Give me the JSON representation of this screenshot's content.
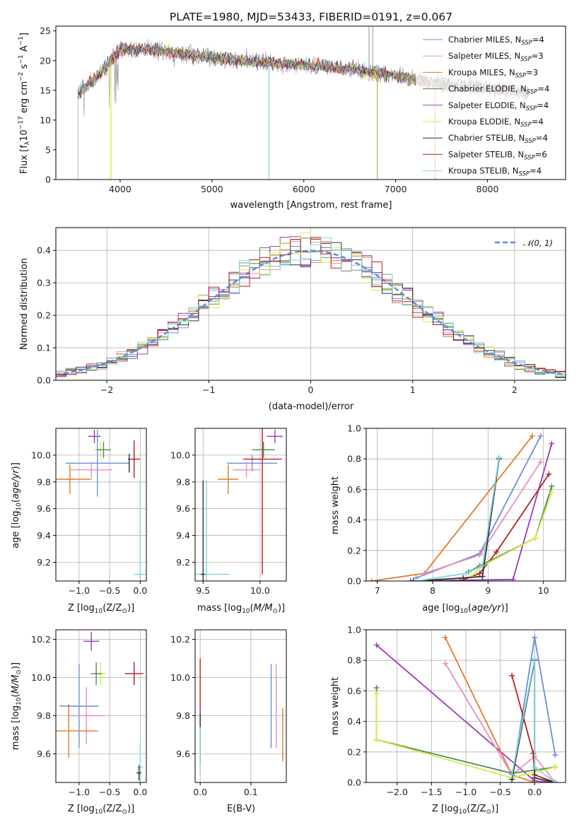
{
  "chart_data": [
    {
      "id": "spectrum",
      "type": "line",
      "title": "PLATE=1980, MJD=53433, FIBERID=0191, z=0.067",
      "xlabel": "wavelength [Angstrom, rest frame]",
      "ylabel": "Flux [f_λ10^-17 erg cm^-2 s^-1 A^-1]",
      "xlim": [
        3300,
        8850
      ],
      "ylim": [
        0,
        25.8
      ],
      "xticks": [
        4000,
        5000,
        6000,
        7000,
        8000
      ],
      "yticks": [
        0,
        5,
        10,
        15,
        20,
        25
      ],
      "grid": false,
      "legend_position": "top-right",
      "continuum": {
        "x": [
          3540,
          3700,
          3850,
          4000,
          4200,
          4500,
          4800,
          5000,
          5500,
          6000,
          6500,
          7000,
          7500,
          8000,
          8500
        ],
        "y": [
          14.5,
          16.5,
          19.0,
          21.8,
          22.0,
          21.5,
          21.0,
          20.5,
          19.8,
          19.3,
          18.6,
          17.4,
          16.0,
          15.4,
          14.5
        ]
      },
      "observed_features": {
        "sky_line_x": [
          6710,
          6750
        ],
        "sky_line_y": 25.8,
        "absorption_x": [
          3900,
          5620,
          6800,
          7430
        ],
        "absorption_y": [
          0,
          0,
          0,
          0
        ]
      },
      "series": [
        {
          "name": "Chabrier MILES, N_SSP=4",
          "color": "#6b8fd6"
        },
        {
          "name": "Salpeter MILES, N_SSP=3",
          "color": "#e88fbf"
        },
        {
          "name": "Kroupa MILES, N_SSP=3",
          "color": "#e07b2a"
        },
        {
          "name": "Chabrier ELODIE, N_SSP=4",
          "color": "#4f8a55"
        },
        {
          "name": "Salpeter ELODIE, N_SSP=4",
          "color": "#9b3bb5"
        },
        {
          "name": "Kroupa ELODIE, N_SSP=4",
          "color": "#d7ea46"
        },
        {
          "name": "Chabrier STELIB, N_SSP=4",
          "color": "#333333"
        },
        {
          "name": "Salpeter STELIB, N_SSP=6",
          "color": "#b51f1f"
        },
        {
          "name": "Kroupa STELIB, N_SSP=4",
          "color": "#7fd6d8"
        }
      ]
    },
    {
      "id": "residuals",
      "type": "line",
      "xlabel": "(data-model)/error",
      "ylabel": "Normed distribution",
      "xlim": [
        -2.5,
        2.5
      ],
      "ylim": [
        0,
        0.47
      ],
      "xticks": [
        -2,
        -1,
        0,
        1,
        2
      ],
      "yticks": [
        0.0,
        0.1,
        0.2,
        0.3,
        0.4
      ],
      "grid": true,
      "legend_position": "top-right",
      "reference": {
        "name": "N(0,1)",
        "color": "#5b8bd6",
        "mean": 0,
        "sigma": 1
      },
      "bin_width": 0.1
    },
    {
      "id": "age-vs-z",
      "type": "scatter",
      "xlabel": "Z [log10(Z/Z⊙)]",
      "ylabel": "age [log10(age/yr)]",
      "xlim": [
        -1.38,
        0.1
      ],
      "ylim": [
        9.06,
        10.2
      ],
      "xticks": [
        -1.0,
        -0.5,
        0.0
      ],
      "xticklabels": [
        "−1.0",
        "−0.5",
        "0.0"
      ],
      "yticks": [
        9.2,
        9.4,
        9.6,
        9.8,
        10.0
      ],
      "grid": true,
      "points": [
        {
          "x": -0.75,
          "y": 10.14,
          "xerr": 0.1,
          "yerr": 0.05,
          "color": "#9b3bb5"
        },
        {
          "x": -0.65,
          "y": 10.04,
          "xerr": 0.11,
          "yerr": 0.06,
          "color": "#d7ea46"
        },
        {
          "x": -0.6,
          "y": 10.04,
          "xerr": 0.12,
          "yerr": 0.06,
          "color": "#4f8a55"
        },
        {
          "x": -0.7,
          "y": 9.94,
          "xerr": 0.52,
          "yerr": 0.25,
          "color": "#6b8fd6"
        },
        {
          "x": -0.8,
          "y": 9.89,
          "xerr": 0.34,
          "yerr": 0.06,
          "color": "#e88fbf"
        },
        {
          "x": -1.15,
          "y": 9.82,
          "xerr": 0.35,
          "yerr": 0.11,
          "color": "#e07b2a"
        },
        {
          "x": -0.1,
          "y": 9.97,
          "xerr": 0.1,
          "yerr": 0.14,
          "color": "#b51f1f"
        },
        {
          "x": 0.0,
          "y": 9.11,
          "xerr": 0.1,
          "yerr": 0.7,
          "color": "#7fd6d8"
        },
        {
          "x": -0.18,
          "y": 9.94,
          "xerr": 0.0,
          "yerr": 0.07,
          "color": "#333333"
        }
      ]
    },
    {
      "id": "age-vs-mass",
      "type": "scatter",
      "xlabel": "mass [log10(M/M⊙)]",
      "xlim": [
        9.43,
        10.23
      ],
      "ylim": [
        9.06,
        10.2
      ],
      "xticks": [
        9.5,
        10.0
      ],
      "xticklabels": [
        "9.5",
        "10.0"
      ],
      "yticks": [
        9.2,
        9.4,
        9.6,
        9.8,
        10.0
      ],
      "grid": true,
      "points": [
        {
          "x": 10.13,
          "y": 10.14,
          "xerr": 0.07,
          "yerr": 0.05,
          "color": "#9b3bb5"
        },
        {
          "x": 10.03,
          "y": 10.04,
          "xerr": 0.07,
          "yerr": 0.06,
          "color": "#d7ea46"
        },
        {
          "x": 10.03,
          "y": 10.04,
          "xerr": 0.1,
          "yerr": 0.06,
          "color": "#4f8a55"
        },
        {
          "x": 9.93,
          "y": 9.94,
          "xerr": 0.22,
          "yerr": 0.06,
          "color": "#6b8fd6"
        },
        {
          "x": 9.88,
          "y": 9.89,
          "xerr": 0.12,
          "yerr": 0.06,
          "color": "#e88fbf"
        },
        {
          "x": 9.72,
          "y": 9.82,
          "xerr": 0.09,
          "yerr": 0.11,
          "color": "#e07b2a"
        },
        {
          "x": 10.02,
          "y": 9.97,
          "xerr": 0.17,
          "yerr": 0.86,
          "color": "#b51f1f"
        },
        {
          "x": 9.53,
          "y": 9.11,
          "xerr": 0.2,
          "yerr": 0.7,
          "color": "#7fd6d8"
        },
        {
          "x": 9.5,
          "y": 9.11,
          "xerr": 0.02,
          "yerr": 0.7,
          "color": "#333333"
        }
      ]
    },
    {
      "id": "weight-vs-age",
      "type": "line",
      "xlabel": "age [log10(age/yr)]",
      "ylabel": "mass weight",
      "xlim": [
        6.8,
        10.4
      ],
      "ylim": [
        0,
        1
      ],
      "xticks": [
        7,
        8,
        9,
        10
      ],
      "yticks": [
        0.0,
        0.2,
        0.4,
        0.6,
        0.8,
        1.0
      ],
      "grid": true,
      "series": [
        {
          "color": "#e07b2a",
          "x": [
            6.9,
            7.85,
            9.8
          ],
          "y": [
            0.0,
            0.05,
            0.95
          ]
        },
        {
          "color": "#6b8fd6",
          "x": [
            7.7,
            8.85,
            9.95
          ],
          "y": [
            0.02,
            0.18,
            0.95
          ]
        },
        {
          "color": "#e88fbf",
          "x": [
            7.85,
            8.85,
            9.95
          ],
          "y": [
            0.05,
            0.17,
            0.78
          ]
        },
        {
          "color": "#9b3bb5",
          "x": [
            7.6,
            9.45,
            10.15
          ],
          "y": [
            0.0,
            0.01,
            0.9
          ]
        },
        {
          "color": "#b51f1f",
          "x": [
            8.5,
            8.85,
            9.15,
            10.1
          ],
          "y": [
            0.0,
            0.05,
            0.19,
            0.7
          ]
        },
        {
          "color": "#4f8a55",
          "x": [
            8.65,
            8.85,
            9.85,
            10.15
          ],
          "y": [
            0.06,
            0.1,
            0.28,
            0.62
          ]
        },
        {
          "color": "#d7ea46",
          "x": [
            8.7,
            8.9,
            9.85,
            10.15
          ],
          "y": [
            0.03,
            0.1,
            0.28,
            0.58
          ]
        },
        {
          "color": "#333333",
          "x": [
            7.65,
            8.55,
            8.9,
            9.2
          ],
          "y": [
            0.0,
            0.02,
            0.03,
            0.8
          ]
        },
        {
          "color": "#7fd6d8",
          "x": [
            7.7,
            8.6,
            8.9,
            9.2
          ],
          "y": [
            0.0,
            0.05,
            0.1,
            0.81
          ]
        }
      ]
    },
    {
      "id": "mass-vs-z",
      "type": "scatter",
      "xlabel": "Z [log10(Z/Z⊙)]",
      "ylabel": "mass [log10(M/M⊙)]",
      "xlim": [
        -1.38,
        0.1
      ],
      "ylim": [
        9.45,
        10.25
      ],
      "xticks": [
        -1.0,
        -0.5,
        0.0
      ],
      "xticklabels": [
        "−1.0",
        "−0.5",
        "0.0"
      ],
      "yticks": [
        9.6,
        9.8,
        10.0,
        10.2
      ],
      "grid": true,
      "points": [
        {
          "x": -0.8,
          "y": 10.19,
          "xerr": 0.13,
          "yerr": 0.05,
          "color": "#9b3bb5"
        },
        {
          "x": -0.65,
          "y": 10.02,
          "xerr": 0.09,
          "yerr": 0.06,
          "color": "#d7ea46"
        },
        {
          "x": -0.72,
          "y": 10.02,
          "xerr": 0.09,
          "yerr": 0.06,
          "color": "#4f8a55"
        },
        {
          "x": -1.0,
          "y": 9.85,
          "xerr": 0.32,
          "yerr": 0.22,
          "color": "#6b8fd6"
        },
        {
          "x": -0.88,
          "y": 9.8,
          "xerr": 0.3,
          "yerr": 0.15,
          "color": "#e88fbf"
        },
        {
          "x": -1.17,
          "y": 9.72,
          "xerr": 0.48,
          "yerr": 0.14,
          "color": "#e07b2a"
        },
        {
          "x": -0.1,
          "y": 10.02,
          "xerr": 0.15,
          "yerr": 0.06,
          "color": "#b51f1f"
        },
        {
          "x": 0.0,
          "y": 9.53,
          "xerr": 0.05,
          "yerr": 0.13,
          "color": "#7fd6d8"
        },
        {
          "x": -0.02,
          "y": 9.5,
          "xerr": 0.04,
          "yerr": 0.04,
          "color": "#333333"
        }
      ]
    },
    {
      "id": "mass-vs-ebv",
      "type": "scatter",
      "xlabel": "E(B-V)",
      "xlim": [
        -0.01,
        0.17
      ],
      "ylim": [
        9.45,
        10.25
      ],
      "xticks": [
        0.0,
        0.1
      ],
      "xticklabels": [
        "0.0",
        "0.1"
      ],
      "yticks": [
        9.6,
        9.8,
        10.0,
        10.2
      ],
      "grid": true,
      "points": [
        {
          "x": 0.001,
          "y": 10.2,
          "yerr": 0.0,
          "color": "#9b3bb5"
        },
        {
          "x": 0.0,
          "y": 9.9,
          "yerr": 0.2,
          "color": "#b51f1f"
        },
        {
          "x": 0.0,
          "y": 9.68,
          "yerr": 0.13,
          "color": "#333333"
        },
        {
          "x": 0.0,
          "y": 9.62,
          "yerr": 0.12,
          "color": "#7fd6d8"
        },
        {
          "x": 0.14,
          "y": 9.85,
          "yerr": 0.22,
          "color": "#6b8fd6"
        },
        {
          "x": 0.15,
          "y": 9.85,
          "yerr": 0.22,
          "color": "#e88fbf"
        },
        {
          "x": 0.163,
          "y": 9.7,
          "yerr": 0.14,
          "color": "#e07b2a"
        }
      ]
    },
    {
      "id": "weight-vs-z",
      "type": "line",
      "xlabel": "Z [log10(Z/Z⊙)]",
      "ylabel": "mass weight",
      "xlim": [
        -2.45,
        0.45
      ],
      "ylim": [
        0,
        1
      ],
      "xticks": [
        -2.0,
        -1.5,
        -1.0,
        -0.5,
        0.0
      ],
      "xticklabels": [
        "−2.0",
        "−1.5",
        "−1.0",
        "−0.5",
        "0.0"
      ],
      "yticks": [
        0.0,
        0.2,
        0.4,
        0.6,
        0.8,
        1.0
      ],
      "grid": true,
      "series": [
        {
          "color": "#9b3bb5",
          "x": [
            -2.3,
            0.0,
            0.3
          ],
          "y": [
            0.9,
            0.01,
            0.0
          ]
        },
        {
          "color": "#e07b2a",
          "x": [
            -1.3,
            -0.33,
            0.0
          ],
          "y": [
            0.95,
            0.05,
            0.0
          ]
        },
        {
          "color": "#e88fbf",
          "x": [
            -1.3,
            -0.33,
            0.0,
            0.3
          ],
          "y": [
            0.78,
            0.05,
            0.17,
            0.0
          ]
        },
        {
          "color": "#6b8fd6",
          "x": [
            -0.33,
            0.0,
            0.3
          ],
          "y": [
            0.02,
            0.95,
            0.18
          ]
        },
        {
          "color": "#b51f1f",
          "x": [
            -0.33,
            -0.02,
            0.0,
            0.3
          ],
          "y": [
            0.7,
            0.19,
            0.05,
            0.0
          ]
        },
        {
          "color": "#4f8a55",
          "x": [
            -2.3,
            -2.3,
            -0.33,
            0.3
          ],
          "y": [
            0.62,
            0.28,
            0.06,
            0.1
          ]
        },
        {
          "color": "#d7ea46",
          "x": [
            -2.3,
            -2.3,
            -0.33,
            0.3
          ],
          "y": [
            0.58,
            0.28,
            0.03,
            0.1
          ]
        },
        {
          "color": "#333333",
          "x": [
            -0.33,
            0.0,
            0.0,
            0.3
          ],
          "y": [
            0.02,
            0.8,
            0.03,
            0.0
          ]
        },
        {
          "color": "#7fd6d8",
          "x": [
            -0.33,
            0.0,
            0.0,
            0.3
          ],
          "y": [
            0.05,
            0.81,
            0.1,
            0.0
          ]
        }
      ]
    }
  ]
}
